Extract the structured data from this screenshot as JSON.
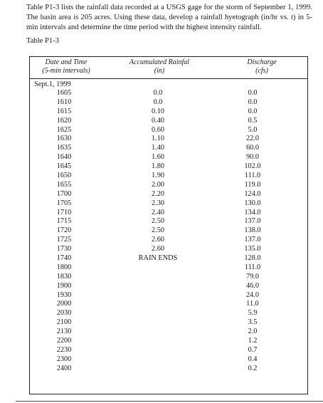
{
  "intro": {
    "part1": "Table P1-3 lists the rainfall data recorded at a USGS gage for the storm of September 1, 1999. The basin area is 205 acres. Using these data, develop a rainfall hyetograph (in/hr vs. ",
    "var_t": "t",
    "part2": ") in 5-min intervals and determine the time period with the highest intensity rainfall."
  },
  "caption": "Table P1-3",
  "headers": {
    "col1_line1": "Date and Time",
    "col1_line2": "(5-min intervals)",
    "col2_line1": "Accumulated Rainfal",
    "col2_line2": "(in)",
    "col3_line1": "Discharge",
    "col3_line2": "(cfs)"
  },
  "date_label": "Sept.1, 1999",
  "rows": [
    {
      "time": "1605",
      "rain": "0.0",
      "discharge": "0.0"
    },
    {
      "time": "1610",
      "rain": "0.0",
      "discharge": "0.0"
    },
    {
      "time": "1615",
      "rain": "0.10",
      "discharge": "0.0"
    },
    {
      "time": "1620",
      "rain": "0.40",
      "discharge": "0.5"
    },
    {
      "time": "1625",
      "rain": "0.60",
      "discharge": "5.0"
    },
    {
      "time": "1630",
      "rain": "1.10",
      "discharge": "22.0"
    },
    {
      "time": "1635",
      "rain": "1.40",
      "discharge": "60.0"
    },
    {
      "time": "1640",
      "rain": "1.60",
      "discharge": "90.0"
    },
    {
      "time": "1645",
      "rain": "1.80",
      "discharge": "102.0"
    },
    {
      "time": "1650",
      "rain": "1.90",
      "discharge": "111.0"
    },
    {
      "time": "1655",
      "rain": "2.00",
      "discharge": "119.0"
    },
    {
      "time": "1700",
      "rain": "2.20",
      "discharge": "124.0"
    },
    {
      "time": "1705",
      "rain": "2.30",
      "discharge": "130.0"
    },
    {
      "time": "1710",
      "rain": "2.40",
      "discharge": "134.0"
    },
    {
      "time": "1715",
      "rain": "2.50",
      "discharge": "137.0"
    },
    {
      "time": "1720",
      "rain": "2.50",
      "discharge": "138.0"
    },
    {
      "time": "1725",
      "rain": "2.60",
      "discharge": "137.0"
    },
    {
      "time": "1730",
      "rain": "2.60",
      "discharge": "135.0"
    },
    {
      "time": "1740",
      "rain": "RAIN ENDS",
      "discharge": "128.0"
    },
    {
      "time": "1800",
      "rain": "",
      "discharge": "111.0"
    },
    {
      "time": "1830",
      "rain": "",
      "discharge": "79.0"
    },
    {
      "time": "1900",
      "rain": "",
      "discharge": "46.0"
    },
    {
      "time": "1930",
      "rain": "",
      "discharge": "24.0"
    },
    {
      "time": "2000",
      "rain": "",
      "discharge": "11.0"
    },
    {
      "time": "2030",
      "rain": "",
      "discharge": "5.9"
    },
    {
      "time": "2100",
      "rain": "",
      "discharge": "3.5"
    },
    {
      "time": "2130",
      "rain": "",
      "discharge": "2.0"
    },
    {
      "time": "2200",
      "rain": "",
      "discharge": "1.2"
    },
    {
      "time": "2230",
      "rain": "",
      "discharge": "0.7"
    },
    {
      "time": "2300",
      "rain": "",
      "discharge": "0.4"
    },
    {
      "time": "2400",
      "rain": "",
      "discharge": "0.2"
    }
  ]
}
